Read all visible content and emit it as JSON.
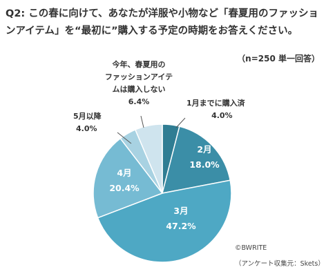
{
  "chart_data": {
    "type": "pie",
    "title_line1": "Q2: この春に向けて、あなたが洋服や小物など「春夏用のファッショ",
    "title_line2": "ンアイテム」を“最初に”購入する予定の時期をお答えください。",
    "note": "（n=250 単一回答）",
    "slices": [
      {
        "name": "1月までに購入済",
        "value": 4.0,
        "label": "4.0%",
        "color": "#2f7d93"
      },
      {
        "name": "2月",
        "value": 18.0,
        "label": "18.0%",
        "color": "#3b8ea7"
      },
      {
        "name": "3月",
        "value": 47.2,
        "label": "47.2%",
        "color": "#4ea8c4"
      },
      {
        "name": "4月",
        "value": 20.4,
        "label": "20.4%",
        "color": "#76bbd3"
      },
      {
        "name": "5月以降",
        "value": 4.0,
        "label": "4.0%",
        "color": "#a8d2e2"
      },
      {
        "name_line1": "今年、春夏用の",
        "name_line2": "ファッションアイテ",
        "name_line3": "ムは購入しない",
        "value": 6.4,
        "label": "6.4%",
        "color": "#cfe4ee"
      }
    ]
  },
  "credit": "©BWRITE",
  "source": "（アンケート収集元：Skets）"
}
